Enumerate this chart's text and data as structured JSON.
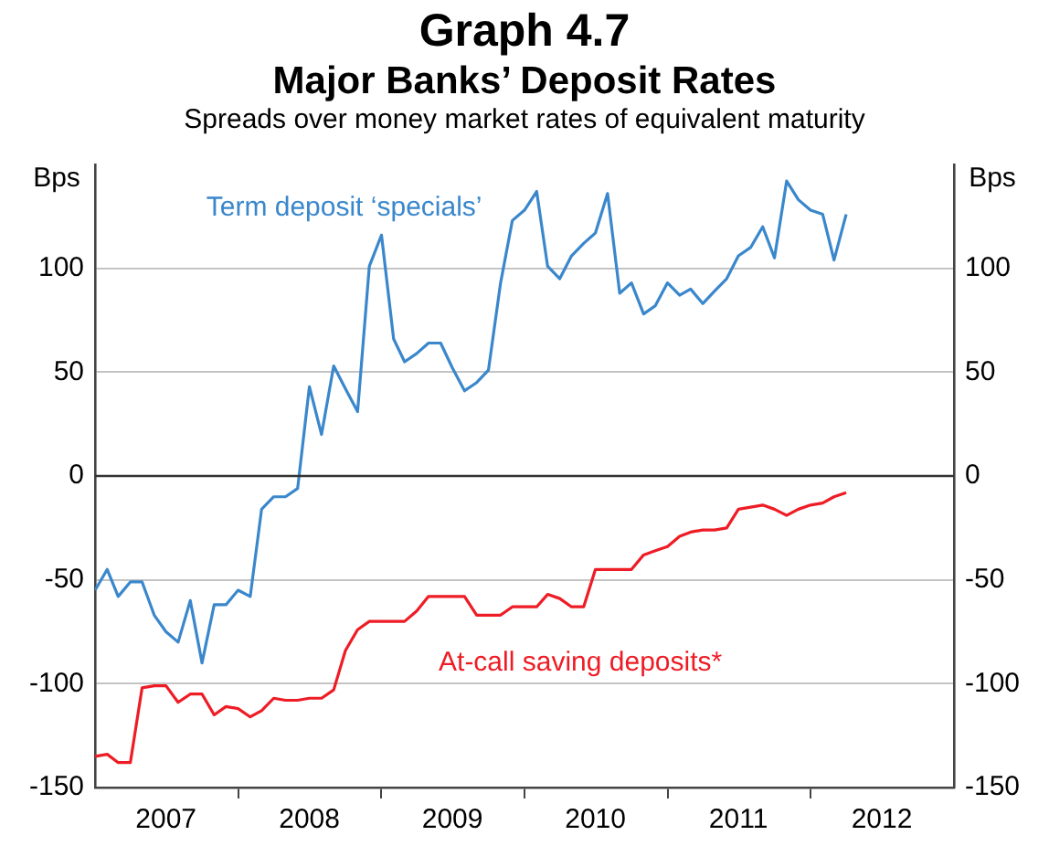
{
  "chart_data": {
    "type": "line",
    "title": "Graph 4.7\nMajor Banks’ Deposit Rates",
    "subtitle": "Spreads over money market rates of equivalent maturity",
    "ylabel": "Bps",
    "y2label": "Bps",
    "x": [
      "2007-01",
      "2007-02",
      "2007-03",
      "2007-04",
      "2007-05",
      "2007-06",
      "2007-07",
      "2007-08",
      "2007-09",
      "2007-10",
      "2007-11",
      "2007-12",
      "2008-01",
      "2008-02",
      "2008-03",
      "2008-04",
      "2008-05",
      "2008-06",
      "2008-07",
      "2008-08",
      "2008-09",
      "2008-10",
      "2008-11",
      "2008-12",
      "2009-01",
      "2009-02",
      "2009-03",
      "2009-04",
      "2009-05",
      "2009-06",
      "2009-07",
      "2009-08",
      "2009-09",
      "2009-10",
      "2009-11",
      "2009-12",
      "2010-01",
      "2010-02",
      "2010-03",
      "2010-04",
      "2010-05",
      "2010-06",
      "2010-07",
      "2010-08",
      "2010-09",
      "2010-10",
      "2010-11",
      "2010-12",
      "2011-01",
      "2011-02",
      "2011-03",
      "2011-04",
      "2011-05",
      "2011-06",
      "2011-07",
      "2011-08",
      "2011-09",
      "2011-10",
      "2011-11",
      "2011-12",
      "2012-01",
      "2012-02",
      "2012-03",
      "2012-04"
    ],
    "series": [
      {
        "name": "Term deposit ‘specials’",
        "color": "#3a87cc",
        "values": [
          -55,
          -45,
          -58,
          -51,
          -51,
          -67,
          -75,
          -80,
          -60,
          -90,
          -62,
          -62,
          -55,
          -58,
          -16,
          -10,
          -10,
          -6,
          43,
          20,
          53,
          42,
          31,
          101,
          116,
          66,
          55,
          59,
          64,
          64,
          52,
          41,
          45,
          51,
          93,
          123,
          128,
          137,
          101,
          95,
          106,
          112,
          117,
          136,
          88,
          93,
          78,
          82,
          93,
          87,
          90,
          83,
          89,
          95,
          106,
          110,
          120,
          105,
          142,
          133,
          128,
          126,
          104,
          126
        ]
      },
      {
        "name": "At-call saving deposits*",
        "color": "#ee1c25",
        "values": [
          -135,
          -134,
          -138,
          -138,
          -102,
          -101,
          -101,
          -109,
          -105,
          -105,
          -115,
          -111,
          -112,
          -116,
          -113,
          -107,
          -108,
          -108,
          -107,
          -107,
          -103,
          -84,
          -74,
          -70,
          -70,
          -70,
          -70,
          -65,
          -58,
          -58,
          -58,
          -58,
          -67,
          -67,
          -67,
          -63,
          -63,
          -63,
          -57,
          -59,
          -63,
          -63,
          -45,
          -45,
          -45,
          -45,
          -38,
          -36,
          -34,
          -29,
          -27,
          -26,
          -26,
          -25,
          -16,
          -15,
          -14,
          -16,
          -19,
          -16,
          -14,
          -13,
          -10,
          -8
        ]
      }
    ],
    "xlim": [
      "2007-01",
      "2013-01"
    ],
    "xticks": [
      {
        "value": "2007-07",
        "label": "2007"
      },
      {
        "value": "2008-01",
        "label": null
      },
      {
        "value": "2008-07",
        "label": "2008"
      },
      {
        "value": "2009-01",
        "label": null
      },
      {
        "value": "2009-07",
        "label": "2009"
      },
      {
        "value": "2010-01",
        "label": null
      },
      {
        "value": "2010-07",
        "label": "2010"
      },
      {
        "value": "2011-01",
        "label": null
      },
      {
        "value": "2011-07",
        "label": "2011"
      },
      {
        "value": "2012-01",
        "label": null
      },
      {
        "value": "2012-07",
        "label": "2012"
      }
    ],
    "ylim": [
      -150,
      150
    ],
    "yticks": [
      -150,
      -100,
      -50,
      0,
      50,
      100
    ],
    "y2lim": [
      -150,
      150
    ],
    "y2ticks": [
      -150,
      -100,
      -50,
      0,
      50,
      100
    ],
    "ref_lines": [
      {
        "axis": "y",
        "value": 0,
        "color": "#333333"
      }
    ],
    "grid": "y",
    "legend": false,
    "marker": "none",
    "line_style": "solid"
  }
}
